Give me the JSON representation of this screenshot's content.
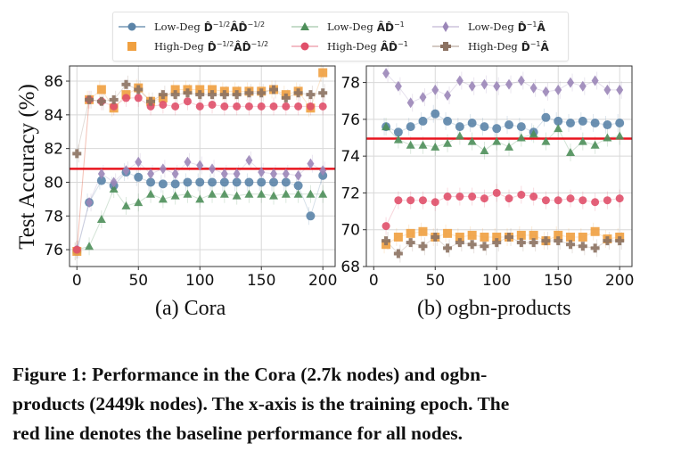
{
  "legend": {
    "items": [
      {
        "prefix": "Low-Deg",
        "math": "D̂",
        "sup1": "−1/2",
        "mid": "ÂD̂",
        "sup2": "−1/2",
        "marker": "circle",
        "color": "#5b84a8"
      },
      {
        "prefix": "Low-Deg",
        "math": "ÂD̂",
        "sup1": "−1",
        "mid": "",
        "sup2": "",
        "marker": "triangle",
        "color": "#4e8f5a"
      },
      {
        "prefix": "Low-Deg",
        "math": "D̂",
        "sup1": "−1",
        "mid": "Â",
        "sup2": "",
        "marker": "diamond",
        "color": "#9b86b8"
      },
      {
        "prefix": "High-Deg",
        "math": "D̂",
        "sup1": "−1/2",
        "mid": "ÂD̂",
        "sup2": "−1/2",
        "marker": "square",
        "color": "#f0a040"
      },
      {
        "prefix": "High-Deg",
        "math": "ÂD̂",
        "sup1": "−1",
        "mid": "",
        "sup2": "",
        "marker": "x",
        "color": "#e0506a"
      },
      {
        "prefix": "High-Deg",
        "math": "D̂",
        "sup1": "−1",
        "mid": "Â",
        "sup2": "",
        "marker": "plus",
        "color": "#8c7262"
      }
    ]
  },
  "chart_data": [
    {
      "type": "scatter",
      "title": "(a) Cora",
      "xlabel": "",
      "ylabel": "Test Accuracy (%)",
      "xlim": [
        -6,
        210
      ],
      "ylim": [
        75.0,
        86.9
      ],
      "xticks": [
        0,
        50,
        100,
        150,
        200
      ],
      "yticks": [
        76,
        78,
        80,
        82,
        84,
        86
      ],
      "grid": true,
      "baseline": {
        "value": 80.8,
        "color": "#e8141e"
      },
      "x": [
        0,
        10,
        20,
        30,
        40,
        50,
        60,
        70,
        80,
        90,
        100,
        110,
        120,
        130,
        140,
        150,
        160,
        170,
        180,
        190,
        200
      ],
      "series": [
        {
          "name": "Low-Deg D^-1/2 A D^-1/2",
          "values": [
            75.9,
            78.8,
            80.1,
            79.8,
            80.6,
            80.3,
            80.0,
            79.9,
            79.9,
            80.0,
            80.0,
            80.0,
            80.0,
            80.0,
            80.0,
            80.0,
            80.0,
            80.0,
            79.8,
            78.0,
            80.4
          ]
        },
        {
          "name": "Low-Deg A D^-1",
          "values": [
            76.0,
            76.2,
            77.8,
            79.6,
            78.6,
            78.8,
            79.3,
            79.0,
            79.2,
            79.3,
            79.0,
            79.3,
            79.3,
            79.2,
            79.3,
            79.3,
            79.2,
            79.3,
            79.3,
            79.3,
            79.3
          ]
        },
        {
          "name": "Low-Deg D^-1 A",
          "values": [
            76.0,
            78.8,
            80.5,
            80.0,
            80.7,
            81.2,
            80.5,
            80.8,
            80.5,
            81.2,
            81.0,
            80.8,
            80.5,
            80.5,
            81.3,
            80.6,
            80.5,
            80.5,
            80.4,
            81.1,
            80.7
          ]
        },
        {
          "name": "High-Deg D^-1/2 A D^-1/2",
          "values": [
            75.9,
            84.9,
            85.5,
            84.4,
            85.2,
            85.6,
            84.8,
            85.0,
            85.5,
            85.5,
            85.5,
            85.5,
            85.4,
            85.4,
            85.4,
            85.4,
            85.5,
            85.2,
            85.4,
            84.4,
            86.5
          ]
        },
        {
          "name": "High-Deg A D^-1",
          "values": [
            76.0,
            84.9,
            84.8,
            84.5,
            85.0,
            85.0,
            84.5,
            84.6,
            84.5,
            84.8,
            84.5,
            84.6,
            84.5,
            84.5,
            84.5,
            84.5,
            84.5,
            84.5,
            84.5,
            84.5,
            84.5
          ]
        },
        {
          "name": "High-Deg D^-1 A",
          "values": [
            81.7,
            84.9,
            84.8,
            84.9,
            85.8,
            85.5,
            84.8,
            85.2,
            85.2,
            85.3,
            85.2,
            85.2,
            85.2,
            85.2,
            85.3,
            85.3,
            85.5,
            85.0,
            85.3,
            85.2,
            85.3
          ]
        }
      ]
    },
    {
      "type": "scatter",
      "title": "(b) ogbn-products",
      "xlabel": "",
      "ylabel": "",
      "xlim": [
        -6,
        210
      ],
      "ylim": [
        68.0,
        78.9
      ],
      "xticks": [
        0,
        50,
        100,
        150,
        200
      ],
      "yticks": [
        68,
        70,
        72,
        74,
        76,
        78
      ],
      "grid": true,
      "baseline": {
        "value": 74.95,
        "color": "#e8141e"
      },
      "x": [
        10,
        20,
        30,
        40,
        50,
        60,
        70,
        80,
        90,
        100,
        110,
        120,
        130,
        140,
        150,
        160,
        170,
        180,
        190,
        200
      ],
      "series": [
        {
          "name": "Low-Deg D^-1/2 A D^-1/2",
          "values": [
            75.6,
            75.3,
            75.6,
            75.9,
            76.3,
            75.9,
            75.6,
            75.8,
            75.6,
            75.5,
            75.7,
            75.6,
            75.3,
            76.1,
            75.9,
            75.8,
            75.9,
            75.8,
            75.7,
            75.8
          ]
        },
        {
          "name": "Low-Deg A D^-1",
          "values": [
            75.6,
            74.9,
            74.6,
            74.6,
            74.5,
            74.7,
            75.1,
            74.8,
            74.3,
            74.8,
            74.5,
            75.0,
            75.2,
            74.8,
            75.5,
            74.2,
            74.8,
            74.6,
            75.0,
            75.1
          ]
        },
        {
          "name": "Low-Deg D^-1 A",
          "values": [
            78.5,
            77.8,
            76.9,
            77.2,
            77.6,
            77.3,
            78.1,
            77.8,
            77.9,
            77.8,
            77.9,
            78.1,
            77.7,
            77.5,
            77.6,
            78.0,
            77.8,
            78.1,
            77.6,
            77.6
          ]
        },
        {
          "name": "High-Deg D^-1/2 A D^-1/2",
          "values": [
            69.2,
            69.6,
            69.8,
            69.9,
            69.6,
            69.8,
            69.6,
            69.7,
            69.6,
            69.6,
            69.6,
            69.7,
            69.7,
            69.4,
            69.7,
            69.6,
            69.6,
            69.9,
            69.5,
            69.6
          ]
        },
        {
          "name": "High-Deg A D^-1",
          "values": [
            70.2,
            71.6,
            71.6,
            71.6,
            71.5,
            71.8,
            71.8,
            71.8,
            71.7,
            72.0,
            71.7,
            71.9,
            71.8,
            71.6,
            71.6,
            71.7,
            71.6,
            71.5,
            71.6,
            71.7
          ]
        },
        {
          "name": "High-Deg D^-1 A",
          "values": [
            69.4,
            68.7,
            69.3,
            69.1,
            69.6,
            69.0,
            69.3,
            69.2,
            69.1,
            69.3,
            69.6,
            69.3,
            69.3,
            69.4,
            69.4,
            69.2,
            69.1,
            69.0,
            69.4,
            69.4
          ]
        }
      ]
    }
  ],
  "subcaptions": {
    "a": "(a) Cora",
    "b": "(b) ogbn-products"
  },
  "caption": {
    "line1": "Figure 1: Performance in the Cora (2.7k nodes) and ogbn-",
    "line2": "products (2449k nodes). The x-axis is the training epoch. The",
    "line3": "red line denotes the baseline performance for all nodes."
  }
}
